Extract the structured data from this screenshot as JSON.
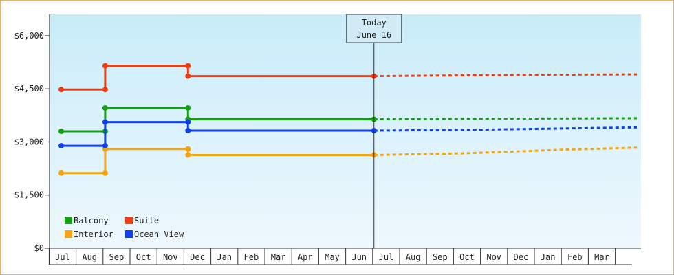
{
  "chart_data": {
    "type": "line",
    "title": "",
    "xlabel": "",
    "ylabel": "",
    "ylim": [
      0,
      6600
    ],
    "y_ticks": [
      0,
      1500,
      3000,
      4500,
      6000
    ],
    "y_tick_labels": [
      "$0",
      "$1,500",
      "$3,000",
      "$4,500",
      "$6,000"
    ],
    "months": [
      "Jul",
      "Aug",
      "Sep",
      "Oct",
      "Nov",
      "Dec",
      "Jan",
      "Feb",
      "Mar",
      "Apr",
      "May",
      "Jun",
      "Jul",
      "Aug",
      "Sep",
      "Oct",
      "Nov",
      "Dec",
      "Jan",
      "Feb",
      "Mar"
    ],
    "today": {
      "label_line1": "Today",
      "label_line2": "June 16",
      "x": 11.55
    },
    "grid": false,
    "legend_position": "bottom-left",
    "series": [
      {
        "name": "Balcony",
        "color": "#13a013",
        "historical": [
          [
            -0.05,
            3300
          ],
          [
            1.58,
            3300
          ],
          [
            1.58,
            3960
          ],
          [
            4.65,
            3960
          ],
          [
            4.65,
            3640
          ],
          [
            11.55,
            3640
          ]
        ],
        "projected": [
          [
            11.55,
            3640
          ],
          [
            16,
            3655
          ],
          [
            21.3,
            3670
          ]
        ]
      },
      {
        "name": "Suite",
        "color": "#f03c10",
        "historical": [
          [
            -0.05,
            4480
          ],
          [
            1.58,
            4480
          ],
          [
            1.58,
            5150
          ],
          [
            4.65,
            5150
          ],
          [
            4.65,
            4860
          ],
          [
            11.55,
            4860
          ]
        ],
        "projected": [
          [
            11.55,
            4860
          ],
          [
            14.5,
            4880
          ],
          [
            18,
            4900
          ],
          [
            21.3,
            4910
          ]
        ]
      },
      {
        "name": "Interior",
        "color": "#f5a512",
        "historical": [
          [
            -0.05,
            2120
          ],
          [
            1.58,
            2120
          ],
          [
            1.58,
            2800
          ],
          [
            4.65,
            2800
          ],
          [
            4.65,
            2630
          ],
          [
            11.55,
            2630
          ]
        ],
        "projected": [
          [
            11.55,
            2630
          ],
          [
            15,
            2680
          ],
          [
            18.5,
            2780
          ],
          [
            21.3,
            2840
          ]
        ]
      },
      {
        "name": "Ocean View",
        "color": "#1040f0",
        "historical": [
          [
            -0.05,
            2890
          ],
          [
            1.58,
            2890
          ],
          [
            1.58,
            3560
          ],
          [
            4.65,
            3560
          ],
          [
            4.65,
            3320
          ],
          [
            11.55,
            3320
          ]
        ],
        "projected": [
          [
            11.55,
            3320
          ],
          [
            15,
            3340
          ],
          [
            18.5,
            3380
          ],
          [
            21.3,
            3410
          ]
        ]
      }
    ]
  }
}
